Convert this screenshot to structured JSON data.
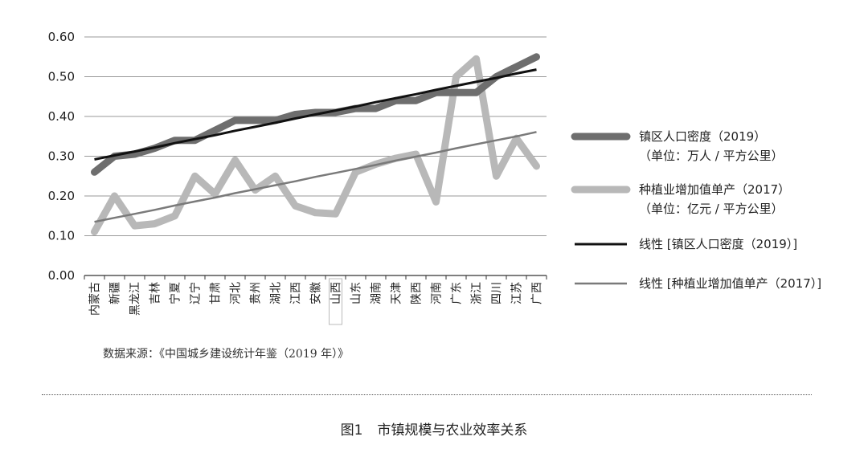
{
  "chart_data": {
    "type": "line",
    "categories": [
      "内蒙古",
      "新疆",
      "黑龙江",
      "吉林",
      "宁夏",
      "辽宁",
      "甘肃",
      "河北",
      "贵州",
      "湖北",
      "江西",
      "安徽",
      "山西",
      "山东",
      "湖南",
      "天津",
      "陕西",
      "河南",
      "广东",
      "浙江",
      "四川",
      "江苏",
      "广西"
    ],
    "highlighted_category": "山西",
    "ylim": [
      0,
      0.6
    ],
    "yticks": [
      "0.00",
      "0.10",
      "0.20",
      "0.30",
      "0.40",
      "0.50",
      "0.60"
    ],
    "grid": true,
    "legend_position": "right",
    "series": [
      {
        "name": "镇区人口密度（2019）",
        "name_line2": "（单位：万人 / 平方公里）",
        "color": "#6e6e6e",
        "style": "thick",
        "values": [
          0.26,
          0.3,
          0.305,
          0.32,
          0.34,
          0.34,
          0.365,
          0.39,
          0.39,
          0.39,
          0.405,
          0.41,
          0.41,
          0.42,
          0.42,
          0.44,
          0.44,
          0.46,
          0.46,
          0.46,
          0.5,
          0.525,
          0.55
        ]
      },
      {
        "name": "种植业增加值单产（2017）",
        "name_line2": "（单位：亿元 / 平方公里）",
        "color": "#b8b8b8",
        "style": "thick",
        "values": [
          0.11,
          0.2,
          0.125,
          0.13,
          0.15,
          0.25,
          0.205,
          0.29,
          0.215,
          0.25,
          0.175,
          0.158,
          0.155,
          0.26,
          0.28,
          0.295,
          0.305,
          0.185,
          0.5,
          0.545,
          0.25,
          0.345,
          0.275
        ]
      },
      {
        "name": "线性 [镇区人口密度（2019）]",
        "color": "#111111",
        "style": "trend",
        "values": [
          0.292,
          0.302,
          0.312,
          0.322,
          0.333,
          0.343,
          0.353,
          0.364,
          0.374,
          0.384,
          0.395,
          0.405,
          0.415,
          0.425,
          0.436,
          0.446,
          0.456,
          0.467,
          0.477,
          0.487,
          0.497,
          0.508,
          0.518
        ]
      },
      {
        "name": "线性 [种植业增加值单产（2017）]",
        "color": "#7a7a7a",
        "style": "trend-thin",
        "values": [
          0.135,
          0.145,
          0.155,
          0.165,
          0.176,
          0.186,
          0.196,
          0.207,
          0.217,
          0.227,
          0.237,
          0.248,
          0.258,
          0.268,
          0.278,
          0.289,
          0.299,
          0.309,
          0.32,
          0.33,
          0.34,
          0.35,
          0.361
        ]
      }
    ]
  },
  "source_note": "数据来源：《中国城乡建设统计年鉴（2019 年）》",
  "caption": {
    "label": "图1",
    "title": "市镇规模与农业效率关系"
  }
}
